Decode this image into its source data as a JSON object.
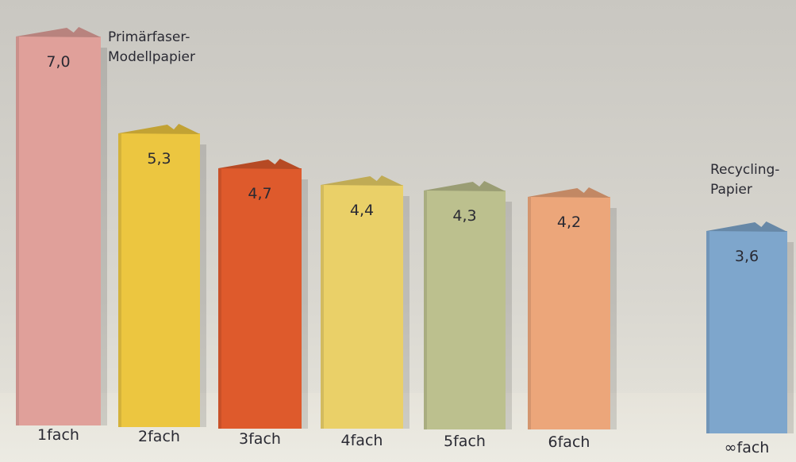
{
  "chart_data": {
    "type": "bar",
    "categories": [
      "1fach",
      "2fach",
      "3fach",
      "4fach",
      "5fach",
      "6fach",
      "∞fach"
    ],
    "values": [
      7.0,
      5.3,
      4.7,
      4.4,
      4.3,
      4.2,
      3.6
    ],
    "value_labels": [
      "7,0",
      "5,3",
      "4,7",
      "4,4",
      "4,3",
      "4,2",
      "3,6"
    ],
    "colors": [
      "#e0a09a",
      "#ecc640",
      "#de5a2c",
      "#ead068",
      "#bcc08e",
      "#eca67a",
      "#7ea6cc"
    ],
    "annotations": {
      "primary": [
        "Primärfaser-",
        "Modellpapier"
      ],
      "recycling": [
        "Recycling-",
        "Papier"
      ]
    },
    "title": "",
    "xlabel": "",
    "ylabel": ""
  }
}
